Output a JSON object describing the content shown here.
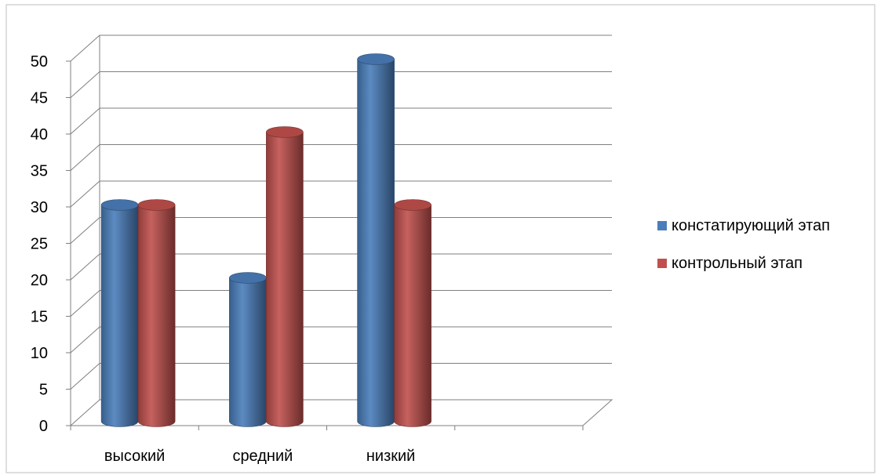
{
  "chart_data": {
    "type": "bar",
    "style": "3d-cylinder",
    "categories": [
      "высокий",
      "средний",
      "низкий",
      ""
    ],
    "series": [
      {
        "name": "констатирующий этап",
        "values": [
          30,
          20,
          50,
          null
        ],
        "color": "#4a7ebb"
      },
      {
        "name": "контрольный этап",
        "values": [
          30,
          40,
          30,
          null
        ],
        "color": "#c0504d"
      }
    ],
    "ylim": [
      0,
      50
    ],
    "yticks": [
      0,
      5,
      10,
      15,
      20,
      25,
      30,
      35,
      40,
      45,
      50
    ],
    "grid": true,
    "legend_position": "right",
    "title": "",
    "xlabel": "",
    "ylabel": ""
  }
}
